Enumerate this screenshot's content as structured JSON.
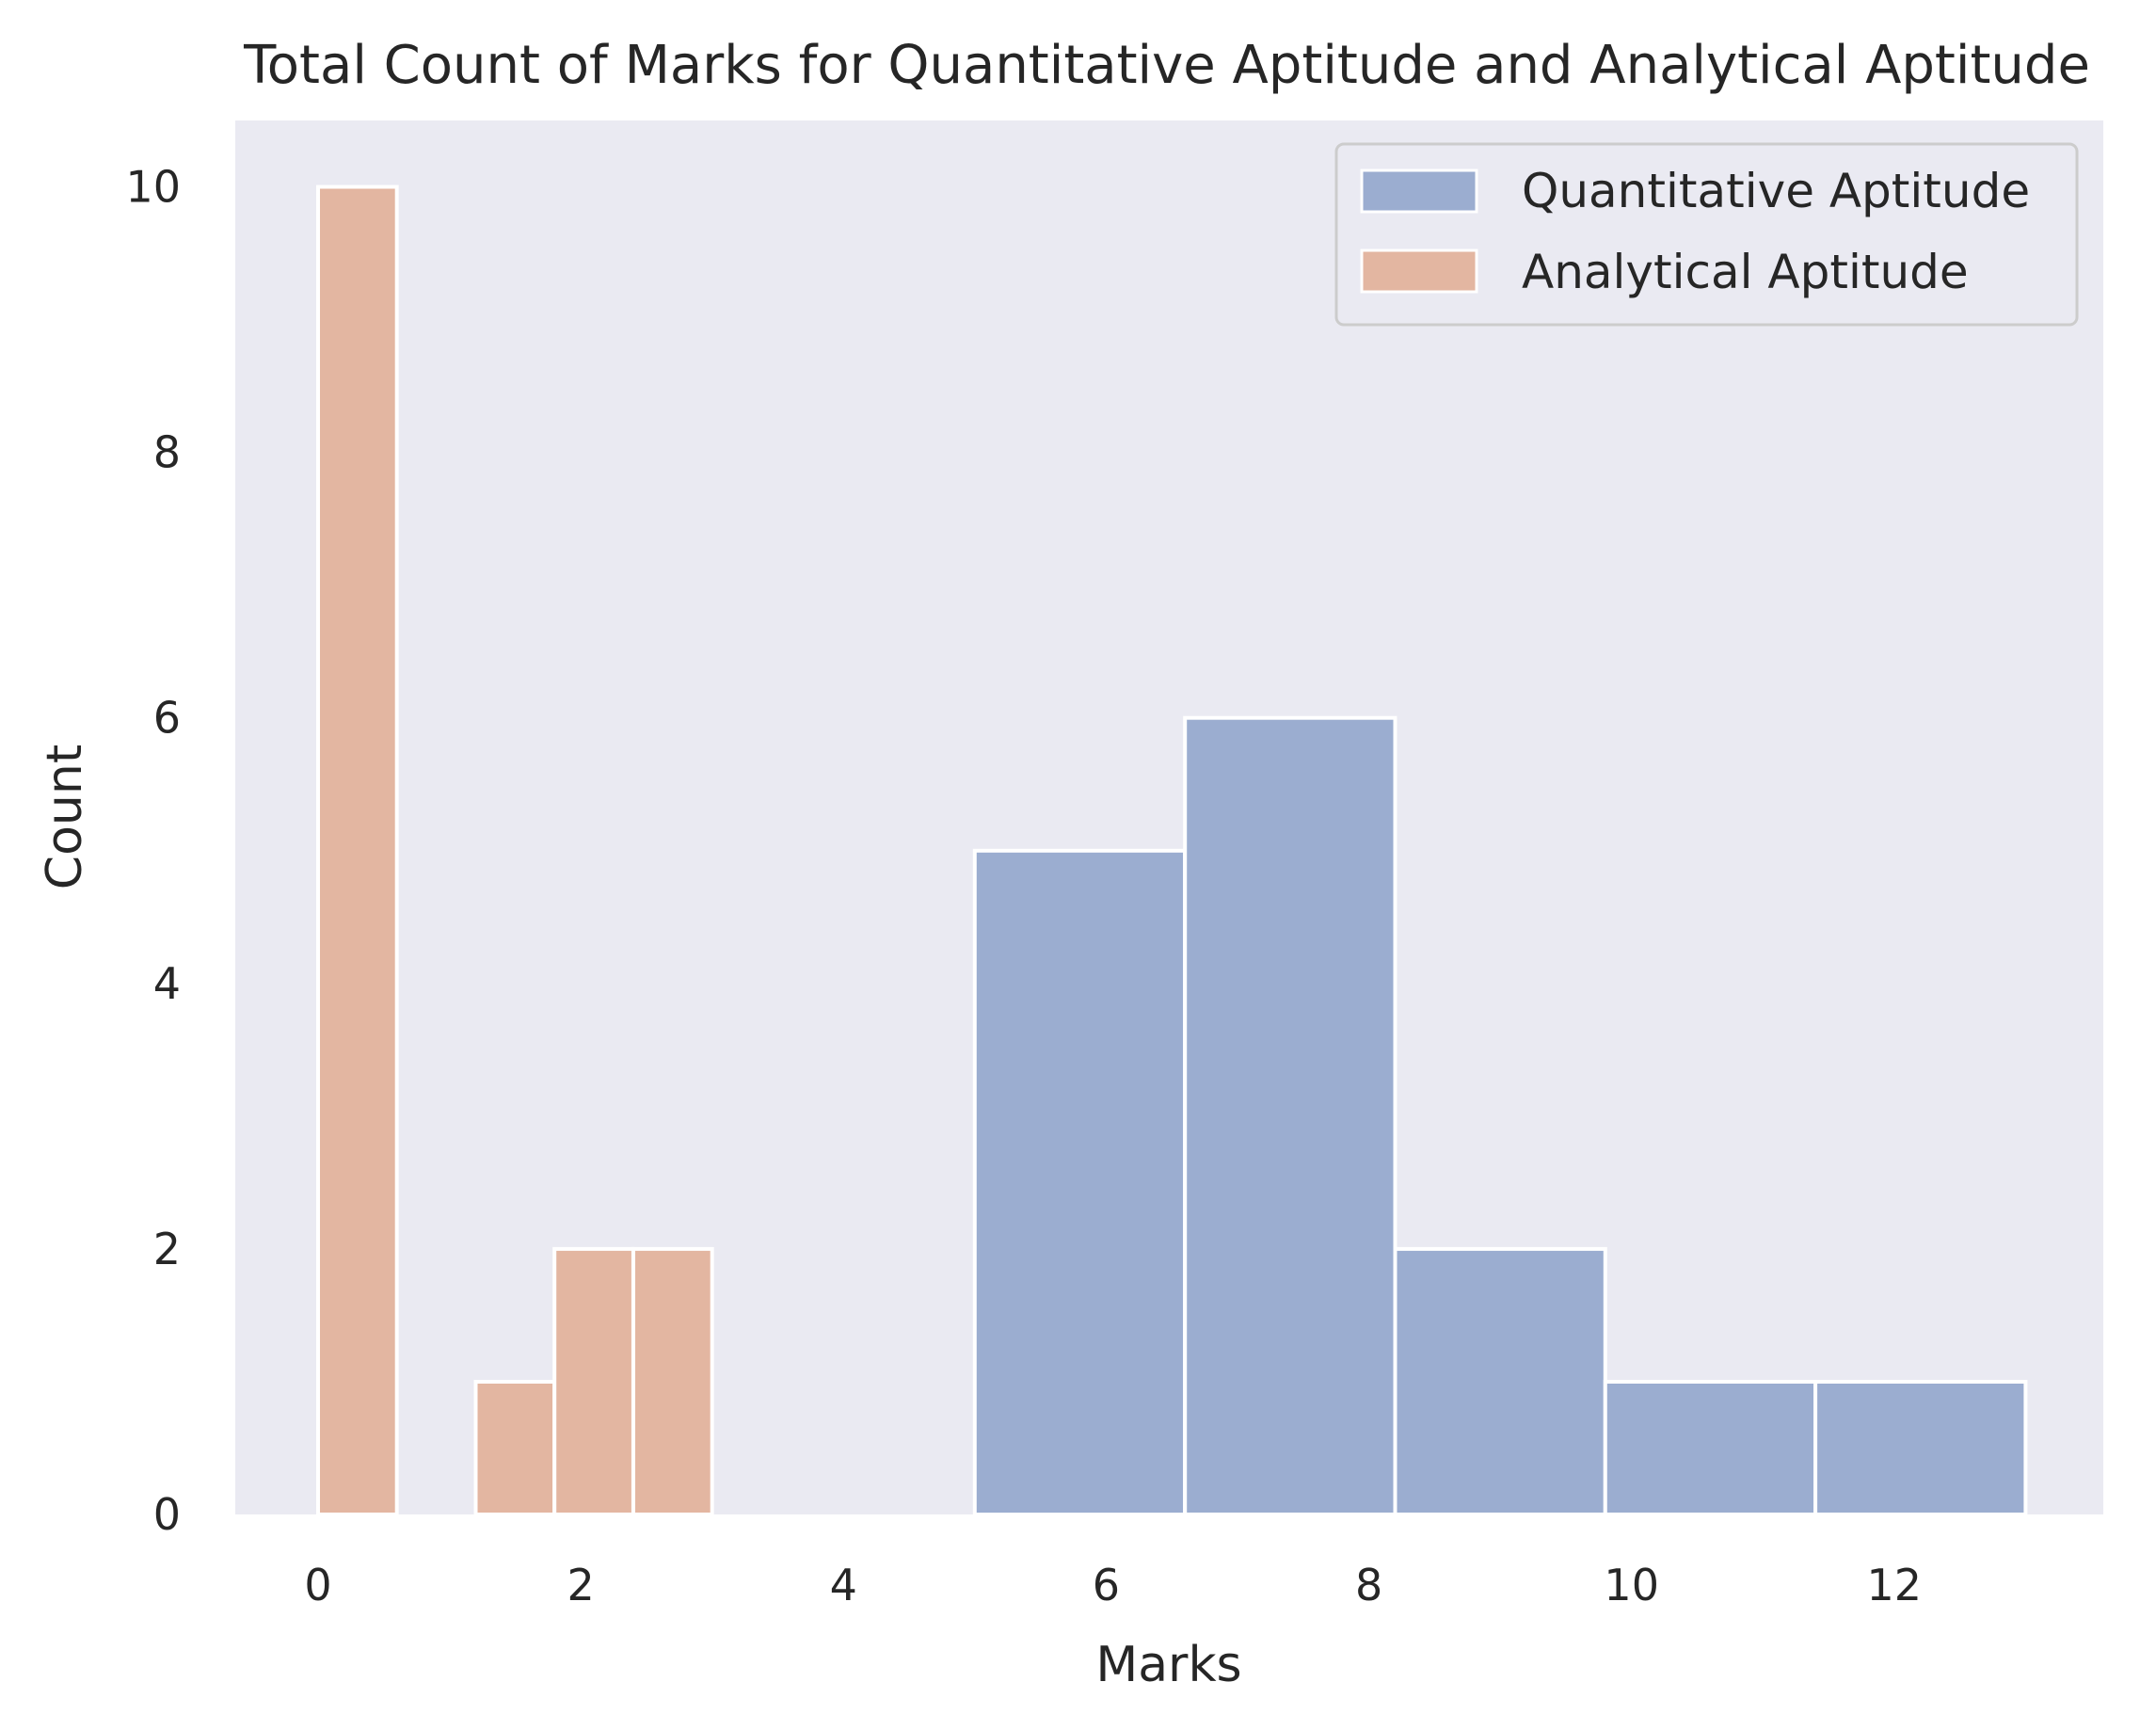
{
  "chart_data": {
    "type": "histogram",
    "title": "Total Count of Marks for Quantitative Aptitude and Analytical Aptitude",
    "xlabel": "Marks",
    "ylabel": "Count",
    "xlim": [
      -0.6,
      13.6
    ],
    "ylim": [
      0,
      10.5
    ],
    "xticks": [
      "0",
      "2",
      "4",
      "6",
      "8",
      "10",
      "12"
    ],
    "yticks": [
      "0",
      "2",
      "4",
      "6",
      "8",
      "10"
    ],
    "grid": false,
    "legend_position": "top-right",
    "series": [
      {
        "name": "Quantitative Aptitude",
        "color": "#9badd0",
        "bins": [
          {
            "x0": 5.0,
            "x1": 6.6,
            "count": 5
          },
          {
            "x0": 6.6,
            "x1": 8.2,
            "count": 6
          },
          {
            "x0": 8.2,
            "x1": 9.8,
            "count": 2
          },
          {
            "x0": 9.8,
            "x1": 11.4,
            "count": 1
          },
          {
            "x0": 11.4,
            "x1": 13.0,
            "count": 1
          }
        ]
      },
      {
        "name": "Analytical Aptitude",
        "color": "#e3b6a1",
        "bins": [
          {
            "x0": 0.0,
            "x1": 0.6,
            "count": 10
          },
          {
            "x0": 1.2,
            "x1": 1.8,
            "count": 1
          },
          {
            "x0": 1.8,
            "x1": 2.4,
            "count": 2
          },
          {
            "x0": 2.4,
            "x1": 3.0,
            "count": 2
          }
        ]
      }
    ]
  }
}
